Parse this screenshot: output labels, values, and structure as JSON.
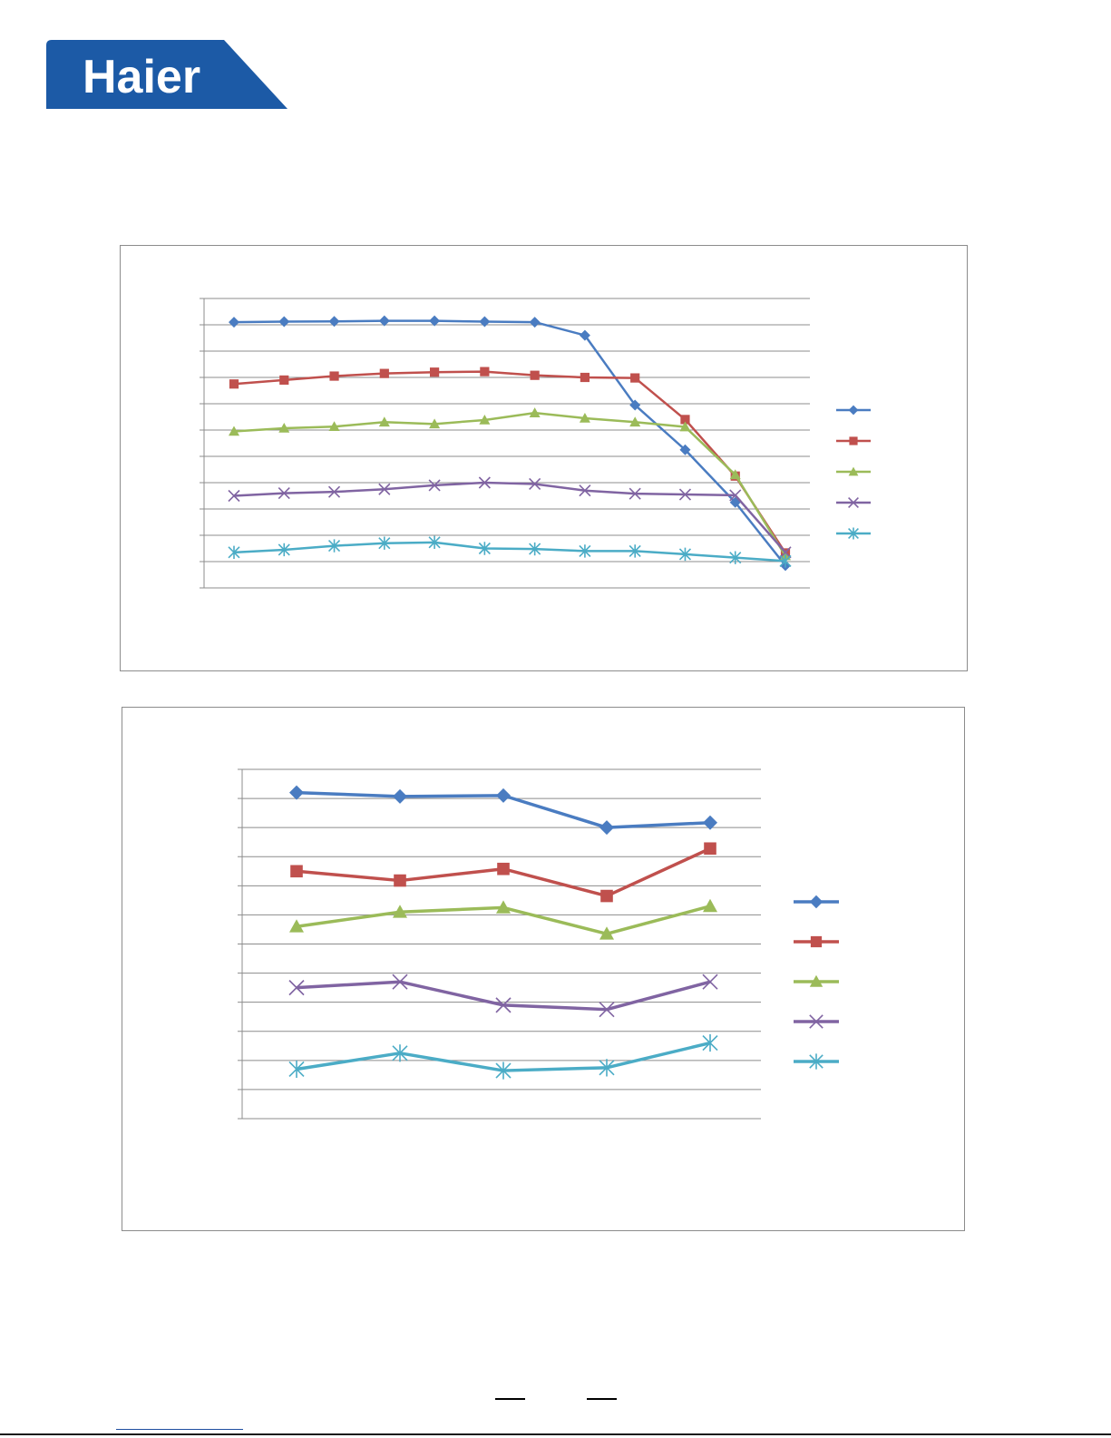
{
  "logo": {
    "text": "Haier",
    "color": "#1c5aa6"
  },
  "series_colors": [
    "#4a7cc1",
    "#c0504d",
    "#9bbb59",
    "#8064a2",
    "#4bacc6"
  ],
  "series_markers": [
    "diamond",
    "square",
    "triangle",
    "x",
    "asterisk"
  ],
  "chart_data": [
    {
      "type": "line",
      "x": [
        1,
        2,
        3,
        4,
        5,
        6,
        7,
        8,
        9,
        10,
        11,
        12
      ],
      "ylim": [
        0,
        11
      ],
      "grid": true,
      "legend": "right",
      "series": [
        {
          "values": [
            10.1,
            10.12,
            10.13,
            10.15,
            10.15,
            10.12,
            10.1,
            9.6,
            6.95,
            5.25,
            3.25,
            0.85
          ]
        },
        {
          "values": [
            7.75,
            7.9,
            8.05,
            8.15,
            8.2,
            8.22,
            8.08,
            8.0,
            7.98,
            6.4,
            4.25,
            1.33
          ]
        },
        {
          "values": [
            5.95,
            6.07,
            6.13,
            6.3,
            6.23,
            6.38,
            6.65,
            6.45,
            6.3,
            6.12,
            4.3,
            1.22
          ]
        },
        {
          "values": [
            3.5,
            3.6,
            3.65,
            3.75,
            3.9,
            4.0,
            3.95,
            3.7,
            3.58,
            3.55,
            3.52,
            1.35
          ]
        },
        {
          "values": [
            1.35,
            1.45,
            1.6,
            1.7,
            1.73,
            1.5,
            1.48,
            1.4,
            1.4,
            1.28,
            1.15,
            1.02
          ]
        }
      ]
    },
    {
      "type": "line",
      "x": [
        1,
        2,
        3,
        4,
        5
      ],
      "ylim": [
        0,
        12
      ],
      "grid": true,
      "legend": "right",
      "series": [
        {
          "values": [
            11.2,
            11.07,
            11.1,
            10.0,
            10.17
          ]
        },
        {
          "values": [
            8.5,
            8.18,
            8.58,
            7.65,
            9.28
          ]
        },
        {
          "values": [
            6.6,
            7.1,
            7.25,
            6.35,
            7.3
          ]
        },
        {
          "values": [
            4.5,
            4.7,
            3.9,
            3.75,
            4.7
          ]
        },
        {
          "values": [
            1.7,
            2.25,
            1.65,
            1.75,
            2.6
          ]
        }
      ]
    }
  ]
}
